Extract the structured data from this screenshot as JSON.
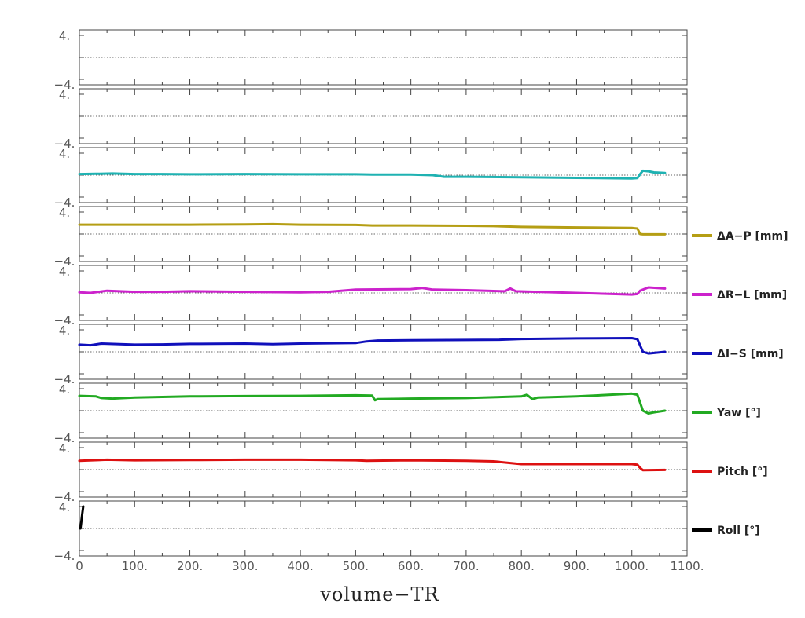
{
  "chart_data": {
    "type": "line",
    "xlabel": "volume−TR",
    "xlim": [
      0,
      1100
    ],
    "x_ticks": [
      0,
      100,
      200,
      300,
      400,
      500,
      600,
      700,
      800,
      900,
      1000,
      1100
    ],
    "x_tick_labels": [
      "0",
      "100.",
      "200.",
      "300.",
      "400.",
      "500.",
      "600.",
      "700.",
      "800.",
      "900.",
      "1000.",
      "1100."
    ],
    "ylim": [
      -4,
      4
    ],
    "y_tick_labels": [
      "4.",
      "−4."
    ],
    "grid": false,
    "zero_line": "dotted",
    "legend_placement": "right of each panel",
    "panels": [
      {
        "name": "",
        "color": "",
        "points": []
      },
      {
        "name": "",
        "color": "",
        "points": []
      },
      {
        "name": "",
        "color": "#1fb2b2",
        "points": [
          [
            0,
            0.2
          ],
          [
            30,
            0.25
          ],
          [
            60,
            0.3
          ],
          [
            100,
            0.2
          ],
          [
            150,
            0.2
          ],
          [
            200,
            0.15
          ],
          [
            300,
            0.2
          ],
          [
            400,
            0.15
          ],
          [
            500,
            0.15
          ],
          [
            530,
            0.1
          ],
          [
            600,
            0.1
          ],
          [
            640,
            0.0
          ],
          [
            660,
            -0.3
          ],
          [
            700,
            -0.3
          ],
          [
            800,
            -0.4
          ],
          [
            900,
            -0.5
          ],
          [
            1000,
            -0.6
          ],
          [
            1010,
            -0.55
          ],
          [
            1015,
            0.2
          ],
          [
            1020,
            0.8
          ],
          [
            1030,
            0.7
          ],
          [
            1040,
            0.5
          ],
          [
            1060,
            0.4
          ]
        ]
      },
      {
        "name": "ΔA−P [mm]",
        "color": "#b59e14",
        "points": [
          [
            0,
            1.7
          ],
          [
            100,
            1.7
          ],
          [
            200,
            1.7
          ],
          [
            300,
            1.75
          ],
          [
            350,
            1.8
          ],
          [
            400,
            1.7
          ],
          [
            500,
            1.65
          ],
          [
            530,
            1.55
          ],
          [
            600,
            1.55
          ],
          [
            700,
            1.5
          ],
          [
            750,
            1.45
          ],
          [
            800,
            1.3
          ],
          [
            900,
            1.2
          ],
          [
            1000,
            1.1
          ],
          [
            1010,
            1.0
          ],
          [
            1015,
            0.0
          ],
          [
            1020,
            -0.05
          ],
          [
            1030,
            -0.05
          ],
          [
            1060,
            -0.05
          ]
        ]
      },
      {
        "name": "ΔR−L [mm]",
        "color": "#cc22cc",
        "points": [
          [
            0,
            0.1
          ],
          [
            20,
            0.0
          ],
          [
            50,
            0.4
          ],
          [
            100,
            0.2
          ],
          [
            150,
            0.2
          ],
          [
            200,
            0.3
          ],
          [
            300,
            0.2
          ],
          [
            400,
            0.1
          ],
          [
            450,
            0.2
          ],
          [
            500,
            0.6
          ],
          [
            600,
            0.7
          ],
          [
            620,
            0.9
          ],
          [
            640,
            0.6
          ],
          [
            700,
            0.5
          ],
          [
            770,
            0.3
          ],
          [
            780,
            0.8
          ],
          [
            790,
            0.3
          ],
          [
            900,
            0.0
          ],
          [
            1000,
            -0.3
          ],
          [
            1010,
            -0.2
          ],
          [
            1015,
            0.4
          ],
          [
            1030,
            1.0
          ],
          [
            1060,
            0.8
          ]
        ]
      },
      {
        "name": "ΔI−S [mm]",
        "color": "#1010bb",
        "points": [
          [
            0,
            1.3
          ],
          [
            20,
            1.2
          ],
          [
            40,
            1.5
          ],
          [
            100,
            1.3
          ],
          [
            150,
            1.35
          ],
          [
            200,
            1.45
          ],
          [
            300,
            1.5
          ],
          [
            350,
            1.4
          ],
          [
            400,
            1.5
          ],
          [
            500,
            1.6
          ],
          [
            520,
            1.9
          ],
          [
            540,
            2.05
          ],
          [
            600,
            2.1
          ],
          [
            700,
            2.15
          ],
          [
            760,
            2.2
          ],
          [
            800,
            2.35
          ],
          [
            900,
            2.45
          ],
          [
            1000,
            2.5
          ],
          [
            1010,
            2.3
          ],
          [
            1020,
            0.0
          ],
          [
            1030,
            -0.3
          ],
          [
            1060,
            0.0
          ]
        ]
      },
      {
        "name": "Yaw [°]",
        "color": "#22aa22",
        "points": [
          [
            0,
            2.7
          ],
          [
            30,
            2.6
          ],
          [
            40,
            2.3
          ],
          [
            60,
            2.2
          ],
          [
            100,
            2.4
          ],
          [
            200,
            2.6
          ],
          [
            300,
            2.65
          ],
          [
            400,
            2.7
          ],
          [
            500,
            2.8
          ],
          [
            530,
            2.75
          ],
          [
            535,
            1.9
          ],
          [
            540,
            2.1
          ],
          [
            600,
            2.2
          ],
          [
            700,
            2.3
          ],
          [
            800,
            2.6
          ],
          [
            810,
            2.9
          ],
          [
            820,
            2.1
          ],
          [
            830,
            2.4
          ],
          [
            900,
            2.6
          ],
          [
            1000,
            3.1
          ],
          [
            1010,
            2.9
          ],
          [
            1020,
            0.0
          ],
          [
            1030,
            -0.5
          ],
          [
            1040,
            -0.3
          ],
          [
            1060,
            0.0
          ]
        ]
      },
      {
        "name": "Pitch [°]",
        "color": "#dd1111",
        "points": [
          [
            0,
            1.6
          ],
          [
            50,
            1.8
          ],
          [
            100,
            1.7
          ],
          [
            200,
            1.75
          ],
          [
            300,
            1.8
          ],
          [
            400,
            1.8
          ],
          [
            500,
            1.7
          ],
          [
            520,
            1.6
          ],
          [
            600,
            1.7
          ],
          [
            700,
            1.6
          ],
          [
            750,
            1.5
          ],
          [
            780,
            1.2
          ],
          [
            800,
            1.0
          ],
          [
            900,
            1.0
          ],
          [
            1000,
            1.0
          ],
          [
            1010,
            0.9
          ],
          [
            1015,
            0.3
          ],
          [
            1020,
            -0.1
          ],
          [
            1060,
            -0.05
          ]
        ]
      },
      {
        "name": "Roll [°]",
        "color": "#000000",
        "points": [
          [
            2,
            0.0
          ],
          [
            5,
            2.5
          ],
          [
            7,
            4.0
          ]
        ]
      }
    ]
  }
}
